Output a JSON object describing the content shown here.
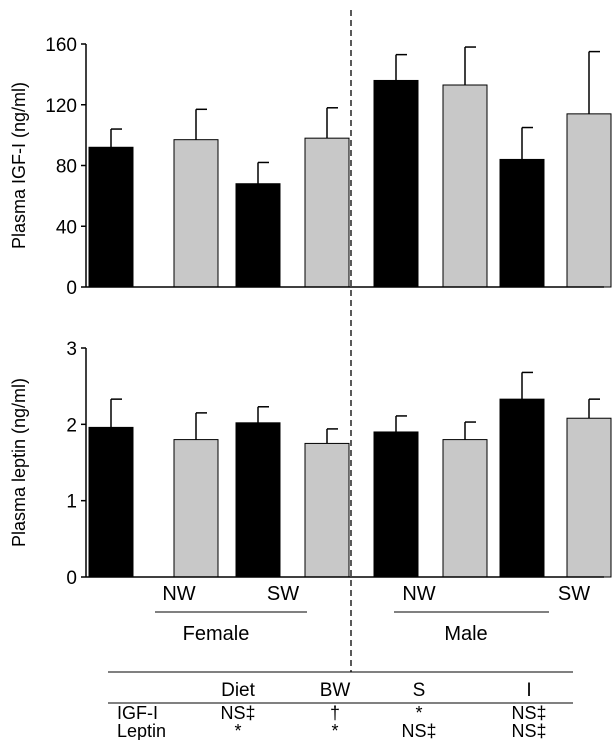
{
  "chart_data": [
    {
      "type": "bar",
      "ylabel": "Plasma IGF-I (ng/ml)",
      "ylim": [
        0,
        160
      ],
      "yticks": [
        0,
        40,
        80,
        120,
        160
      ],
      "series": [
        {
          "name": "",
          "color": "#000000",
          "values": [
            92,
            68,
            136,
            84
          ],
          "errors": [
            12,
            14,
            17,
            21
          ]
        },
        {
          "name": "",
          "color": "#c8c8c8",
          "values": [
            97,
            98,
            133,
            114
          ],
          "errors": [
            20,
            20,
            25,
            41
          ]
        }
      ]
    },
    {
      "type": "bar",
      "ylabel": "Plasma leptin (ng/ml)",
      "ylim": [
        0,
        3
      ],
      "yticks": [
        0,
        1,
        2,
        3
      ],
      "series": [
        {
          "name": "",
          "color": "#000000",
          "values": [
            1.96,
            2.02,
            1.9,
            2.33
          ],
          "errors": [
            0.37,
            0.21,
            0.21,
            0.35
          ]
        },
        {
          "name": "",
          "color": "#c8c8c8",
          "values": [
            1.8,
            1.75,
            1.8,
            2.08
          ],
          "errors": [
            0.35,
            0.19,
            0.23,
            0.25
          ]
        }
      ]
    }
  ],
  "x_groups": {
    "weight_labels": [
      "NW",
      "SW",
      "NW",
      "SW"
    ],
    "sex_labels": [
      "Female",
      "Male"
    ]
  },
  "stats_table": {
    "columns": [
      "",
      "Diet",
      "BW",
      "S",
      "I"
    ],
    "rows": [
      {
        "label": "IGF-I",
        "cells": [
          "NS‡",
          "†",
          "*",
          "NS‡"
        ]
      },
      {
        "label": "Leptin",
        "cells": [
          "*",
          "*",
          "NS‡",
          "NS‡"
        ]
      }
    ]
  }
}
